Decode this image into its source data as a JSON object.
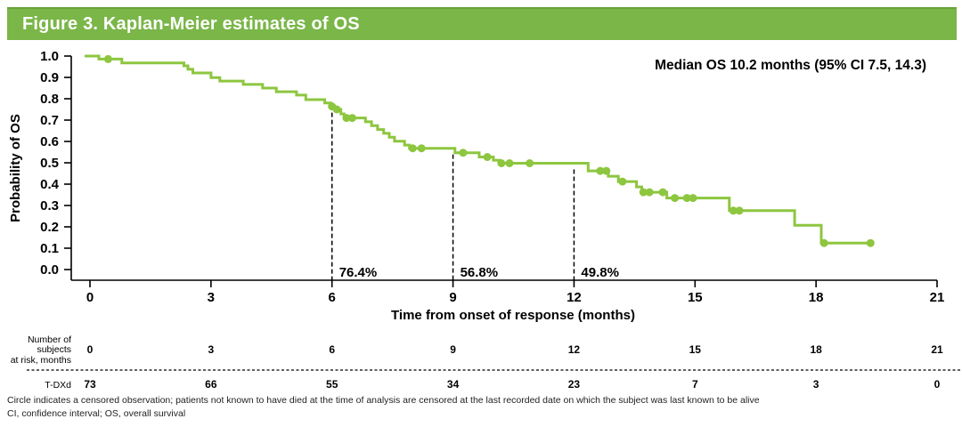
{
  "title": "Figure 3. Kaplan-Meier estimates of OS",
  "colors": {
    "header_green": "#7ab648",
    "curve_green": "#8dc63f",
    "axis_black": "#000000"
  },
  "footnotes": [
    "Circle indicates a censored observation; patients not known to have died at the time of analysis are censored at the last recorded date on which the subject was last known to be alive",
    "CI, confidence interval; OS, overall survival"
  ],
  "chart_data": {
    "type": "line",
    "subtype": "kaplan-meier-step",
    "title": "Figure 3. Kaplan-Meier estimates of OS",
    "xlabel": "Time from onset of response (months)",
    "ylabel": "Probability of OS",
    "xlim": [
      0,
      21
    ],
    "ylim": [
      0.0,
      1.0
    ],
    "xticks": [
      0,
      3,
      6,
      9,
      12,
      15,
      18,
      21
    ],
    "xtick_labels": [
      "0",
      "3",
      "6",
      "9",
      "12",
      "15",
      "18",
      "21"
    ],
    "yticks": [
      0.0,
      0.1,
      0.2,
      0.3,
      0.4,
      0.5,
      0.6,
      0.7,
      0.8,
      0.9,
      1.0
    ],
    "ytick_labels": [
      "0.0",
      "0.1",
      "0.2",
      "0.3",
      "0.4",
      "0.5",
      "0.6",
      "0.7",
      "0.8",
      "0.9",
      "1.0"
    ],
    "grid": false,
    "annotation": "Median OS 10.2 months (95% CI 7.5, 14.3)",
    "landmarks": [
      {
        "month": 6,
        "survival": 0.764,
        "label": "76.4%"
      },
      {
        "month": 9,
        "survival": 0.568,
        "label": "56.8%"
      },
      {
        "month": 12,
        "survival": 0.498,
        "label": "49.8%"
      }
    ],
    "series": [
      {
        "name": "T-DXd",
        "start": [
          0,
          1.0
        ],
        "end_month": 19.4,
        "steps": [
          [
            0.22,
            0.986
          ],
          [
            0.79,
            0.968
          ],
          [
            2.33,
            0.954
          ],
          [
            2.43,
            0.938
          ],
          [
            2.55,
            0.921
          ],
          [
            3.0,
            0.899
          ],
          [
            3.22,
            0.883
          ],
          [
            3.8,
            0.867
          ],
          [
            4.28,
            0.85
          ],
          [
            4.62,
            0.833
          ],
          [
            5.12,
            0.817
          ],
          [
            5.35,
            0.796
          ],
          [
            5.82,
            0.78
          ],
          [
            5.97,
            0.764
          ],
          [
            6.06,
            0.75
          ],
          [
            6.22,
            0.729
          ],
          [
            6.3,
            0.71
          ],
          [
            6.83,
            0.692
          ],
          [
            6.98,
            0.674
          ],
          [
            7.13,
            0.656
          ],
          [
            7.28,
            0.638
          ],
          [
            7.42,
            0.62
          ],
          [
            7.55,
            0.601
          ],
          [
            7.8,
            0.583
          ],
          [
            7.92,
            0.568
          ],
          [
            9.05,
            0.547
          ],
          [
            9.65,
            0.527
          ],
          [
            10.0,
            0.512
          ],
          [
            10.15,
            0.498
          ],
          [
            12.35,
            0.462
          ],
          [
            12.85,
            0.437
          ],
          [
            13.1,
            0.412
          ],
          [
            13.55,
            0.387
          ],
          [
            13.68,
            0.362
          ],
          [
            14.3,
            0.335
          ],
          [
            15.85,
            0.276
          ],
          [
            17.47,
            0.207
          ],
          [
            18.13,
            0.124
          ]
        ],
        "censors": [
          [
            0.45,
            0.986
          ],
          [
            6.0,
            0.764
          ],
          [
            6.12,
            0.75
          ],
          [
            6.36,
            0.71
          ],
          [
            6.5,
            0.71
          ],
          [
            8.0,
            0.568
          ],
          [
            8.22,
            0.568
          ],
          [
            9.25,
            0.547
          ],
          [
            9.85,
            0.527
          ],
          [
            10.2,
            0.498
          ],
          [
            10.4,
            0.498
          ],
          [
            10.9,
            0.498
          ],
          [
            12.65,
            0.462
          ],
          [
            12.8,
            0.462
          ],
          [
            13.2,
            0.412
          ],
          [
            13.72,
            0.362
          ],
          [
            13.87,
            0.362
          ],
          [
            14.2,
            0.362
          ],
          [
            14.5,
            0.335
          ],
          [
            14.8,
            0.335
          ],
          [
            14.95,
            0.335
          ],
          [
            15.95,
            0.276
          ],
          [
            16.1,
            0.276
          ],
          [
            18.2,
            0.124
          ],
          [
            19.35,
            0.124
          ]
        ]
      }
    ],
    "risk_table": {
      "header_lines": [
        "Number of",
        "subjects",
        "at risk, months"
      ],
      "months": [
        0,
        3,
        6,
        9,
        12,
        15,
        18,
        21
      ],
      "rows": [
        {
          "name": "T-DXd",
          "values": [
            73,
            66,
            55,
            34,
            23,
            7,
            3,
            0
          ]
        }
      ]
    }
  }
}
